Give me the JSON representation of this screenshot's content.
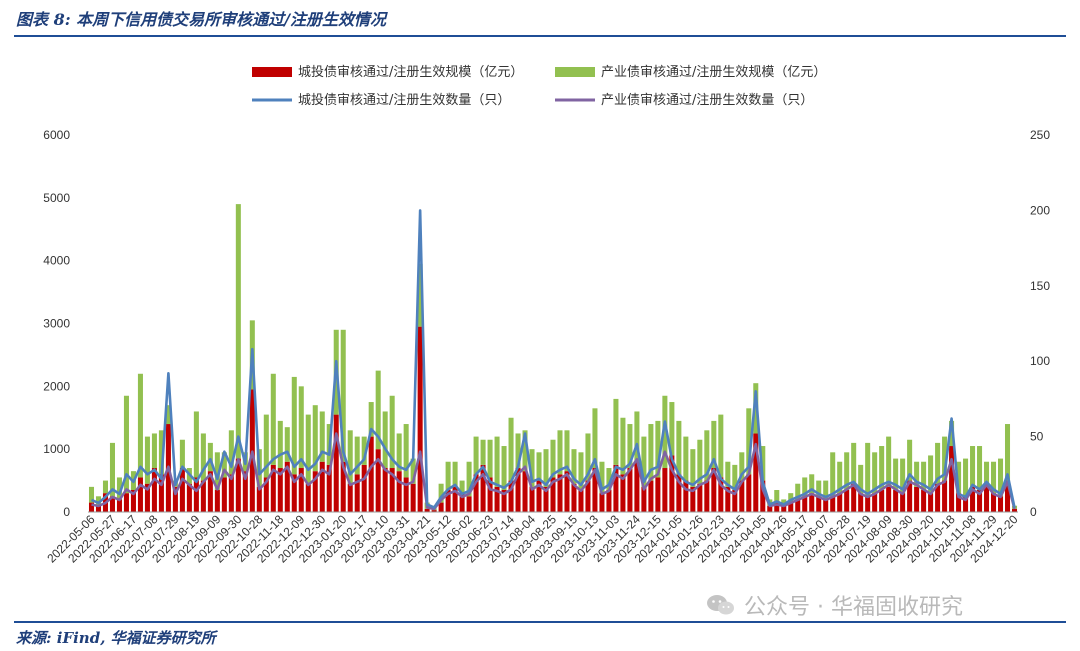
{
  "figure": {
    "title": "图表 8:  本周下信用债交易所审核通过/注册生效情况",
    "source": "来源:  iFind,  华福证券研究所",
    "watermark": "公众号 · 华福固收研究"
  },
  "colors": {
    "bar_urban": "#c00000",
    "bar_industrial": "#92c050",
    "line_urban": "#4f81bd",
    "line_industrial": "#8064a2",
    "rule": "#1f4e96"
  },
  "chart_data": {
    "type": "bar",
    "stacked": true,
    "title": "",
    "xlabel": "",
    "ylabel": "",
    "y_left_lim": [
      0,
      6000
    ],
    "y_left_ticks": [
      0,
      1000,
      2000,
      3000,
      4000,
      5000,
      6000
    ],
    "y_right_lim": [
      0,
      250
    ],
    "y_right_ticks": [
      0,
      50,
      100,
      150,
      200,
      250
    ],
    "grid": false,
    "legend_position": "top",
    "x_tick_labels": [
      "2022-05-06",
      "2022-05-27",
      "2022-06-17",
      "2022-07-08",
      "2022-07-29",
      "2022-08-19",
      "2022-09-09",
      "2022-09-30",
      "2022-10-28",
      "2022-11-18",
      "2022-12-09",
      "2022-12-30",
      "2023-01-20",
      "2023-02-17",
      "2023-03-10",
      "2023-03-31",
      "2023-04-21",
      "2023-05-12",
      "2023-06-02",
      "2023-06-23",
      "2023-07-14",
      "2023-08-04",
      "2023-08-25",
      "2023-09-15",
      "2023-10-13",
      "2023-11-03",
      "2023-11-24",
      "2023-12-15",
      "2024-01-05",
      "2024-01-26",
      "2024-02-23",
      "2024-03-15",
      "2024-04-05",
      "2024-04-26",
      "2024-05-17",
      "2024-06-07",
      "2024-06-28",
      "2024-07-19",
      "2024-08-09",
      "2024-08-30",
      "2024-09-20",
      "2024-10-18",
      "2024-11-08",
      "2024-11-29",
      "2024-12-20"
    ],
    "ticks_every": 3,
    "series": [
      {
        "name": "城投债审核通过/注册生效规模（亿元）",
        "kind": "bar",
        "axis": "left",
        "values": [
          150,
          100,
          300,
          250,
          200,
          300,
          350,
          550,
          450,
          700,
          600,
          1400,
          400,
          700,
          450,
          550,
          500,
          650,
          350,
          550,
          600,
          850,
          650,
          1950,
          400,
          550,
          750,
          700,
          800,
          600,
          700,
          450,
          650,
          800,
          750,
          1550,
          800,
          450,
          600,
          750,
          1200,
          1000,
          700,
          700,
          650,
          550,
          450,
          2950,
          50,
          30,
          150,
          350,
          400,
          300,
          250,
          600,
          750,
          550,
          400,
          350,
          500,
          700,
          650,
          400,
          500,
          400,
          550,
          600,
          650,
          450,
          350,
          500,
          700,
          300,
          350,
          750,
          600,
          700,
          800,
          400,
          500,
          550,
          700,
          900,
          600,
          500,
          400,
          450,
          500,
          700,
          550,
          400,
          350,
          500,
          600,
          1250,
          500,
          100,
          150,
          100,
          150,
          200,
          250,
          300,
          250,
          200,
          250,
          300,
          350,
          450,
          300,
          250,
          300,
          350,
          400,
          350,
          300,
          500,
          400,
          350,
          300,
          450,
          500,
          1050,
          300,
          250,
          400,
          350,
          400,
          300,
          250,
          500,
          50
        ]
      },
      {
        "name": "产业债审核通过/注册生效规模（亿元）",
        "kind": "bar",
        "axis": "left",
        "values": [
          250,
          150,
          200,
          850,
          350,
          1550,
          300,
          1650,
          750,
          550,
          700,
          300,
          100,
          450,
          250,
          1050,
          750,
          450,
          600,
          400,
          700,
          4050,
          300,
          1100,
          600,
          1000,
          1450,
          750,
          550,
          1550,
          1300,
          1100,
          1050,
          800,
          650,
          1350,
          2100,
          850,
          600,
          450,
          550,
          1250,
          900,
          1150,
          600,
          850,
          400,
          1000,
          100,
          30,
          300,
          450,
          400,
          200,
          550,
          600,
          400,
          600,
          800,
          700,
          1000,
          550,
          650,
          600,
          450,
          600,
          600,
          700,
          650,
          550,
          600,
          750,
          950,
          500,
          350,
          1050,
          900,
          700,
          800,
          800,
          900,
          900,
          1150,
          850,
          850,
          700,
          600,
          700,
          800,
          750,
          1000,
          400,
          400,
          450,
          1050,
          800,
          550,
          100,
          200,
          100,
          150,
          250,
          300,
          300,
          250,
          300,
          700,
          500,
          600,
          650,
          450,
          850,
          650,
          700,
          800,
          500,
          550,
          650,
          400,
          450,
          600,
          650,
          700,
          400,
          500,
          600,
          650,
          700,
          400,
          500,
          600,
          900,
          50
        ]
      },
      {
        "name": "城投债审核通过/注册生效数量（只）",
        "kind": "line",
        "axis": "right",
        "values": [
          8,
          6,
          10,
          15,
          12,
          25,
          20,
          30,
          25,
          28,
          22,
          92,
          18,
          30,
          25,
          20,
          28,
          35,
          22,
          40,
          30,
          50,
          32,
          108,
          25,
          30,
          35,
          38,
          40,
          30,
          35,
          28,
          32,
          40,
          38,
          100,
          40,
          25,
          30,
          35,
          55,
          50,
          42,
          35,
          30,
          28,
          35,
          200,
          5,
          3,
          10,
          15,
          18,
          12,
          14,
          25,
          30,
          20,
          18,
          16,
          20,
          30,
          52,
          20,
          22,
          18,
          25,
          28,
          30,
          22,
          18,
          25,
          35,
          15,
          18,
          30,
          28,
          32,
          45,
          20,
          28,
          30,
          60,
          35,
          25,
          20,
          18,
          22,
          25,
          35,
          22,
          18,
          15,
          25,
          30,
          80,
          20,
          5,
          7,
          5,
          8,
          10,
          12,
          15,
          12,
          10,
          12,
          15,
          18,
          20,
          15,
          12,
          15,
          18,
          20,
          18,
          15,
          25,
          20,
          18,
          15,
          22,
          25,
          62,
          12,
          10,
          18,
          15,
          20,
          15,
          12,
          25,
          3
        ]
      },
      {
        "name": "产业债审核通过/注册生效数量（只）",
        "kind": "line",
        "axis": "right",
        "values": [
          5,
          4,
          6,
          10,
          8,
          15,
          12,
          18,
          15,
          22,
          18,
          30,
          12,
          22,
          18,
          14,
          20,
          25,
          15,
          28,
          22,
          35,
          22,
          40,
          15,
          20,
          28,
          25,
          30,
          20,
          25,
          18,
          22,
          28,
          25,
          52,
          30,
          18,
          20,
          22,
          30,
          35,
          28,
          25,
          20,
          18,
          20,
          40,
          3,
          2,
          8,
          12,
          14,
          10,
          12,
          20,
          25,
          15,
          14,
          12,
          15,
          25,
          30,
          15,
          18,
          14,
          20,
          22,
          25,
          18,
          14,
          20,
          28,
          12,
          14,
          25,
          22,
          28,
          35,
          15,
          22,
          25,
          40,
          28,
          20,
          15,
          14,
          18,
          20,
          28,
          18,
          14,
          12,
          20,
          25,
          45,
          15,
          4,
          5,
          4,
          6,
          8,
          10,
          12,
          10,
          8,
          10,
          12,
          15,
          18,
          12,
          10,
          12,
          15,
          18,
          15,
          12,
          20,
          18,
          15,
          12,
          18,
          20,
          35,
          10,
          8,
          15,
          12,
          18,
          12,
          10,
          20,
          2
        ]
      }
    ]
  }
}
